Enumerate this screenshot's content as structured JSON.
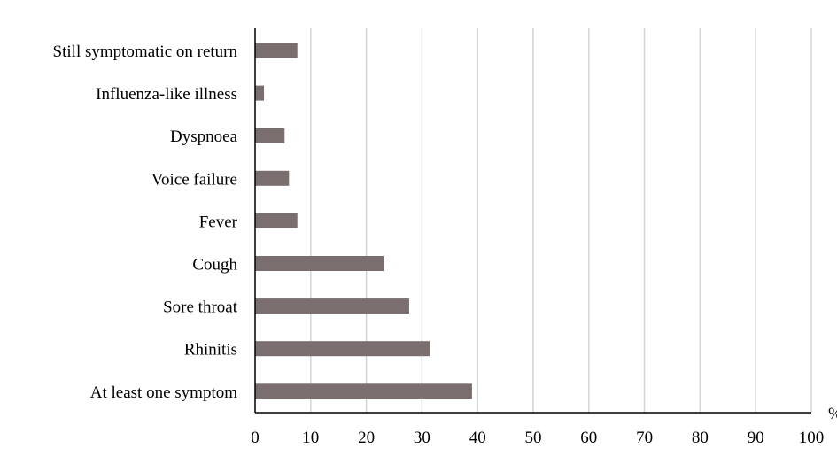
{
  "chart_data": {
    "type": "bar",
    "orientation": "horizontal",
    "categories": [
      "Still symptomatic on return",
      "Influenza-like illness",
      "Dyspnoea",
      "Voice failure",
      "Fever",
      "Cough",
      "Sore throat",
      "Rhinitis",
      "At least one symptom"
    ],
    "values": [
      7.6,
      1.6,
      5.3,
      6.1,
      7.6,
      23.1,
      27.7,
      31.4,
      39.0
    ],
    "title": "",
    "xlabel": "%",
    "ylabel": "",
    "xlim": [
      0,
      100
    ],
    "xticks": [
      0,
      10,
      20,
      30,
      40,
      50,
      60,
      70,
      80,
      90,
      100
    ],
    "grid": "vertical",
    "legend": "none",
    "bar_color": "#7a6e6e",
    "grid_color": "#d4d4d4"
  }
}
